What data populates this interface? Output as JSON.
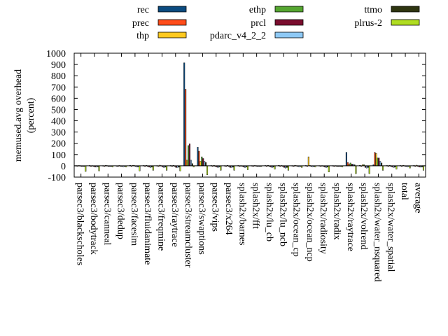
{
  "chart_data": {
    "type": "bar",
    "ylabel_line1": "memused.avg overhead",
    "ylabel_line2": "(percent)",
    "ylim": [
      -100,
      1000
    ],
    "yticks": [
      -100,
      0,
      100,
      200,
      300,
      400,
      500,
      600,
      700,
      800,
      900,
      1000
    ],
    "legend_placement": "top",
    "categories": [
      "parsec3/blackscholes",
      "parsec3/bodytrack",
      "parsec3/canneal",
      "parsec3/dedup",
      "parsec3/facesim",
      "parsec3/fluidanimate",
      "parsec3/freqmine",
      "parsec3/raytrace",
      "parsec3/streamcluster",
      "parsec3/swaptions",
      "parsec3/vips",
      "parsec3/x264",
      "splash2x/barnes",
      "splash2x/fft",
      "splash2x/lu_cb",
      "splash2x/lu_ncb",
      "splash2x/ocean_cp",
      "splash2x/ocean_ncp",
      "splash2x/radiosity",
      "splash2x/radix",
      "splash2x/raytrace",
      "splash2x/volrend",
      "splash2x/water_nsquared",
      "splash2x/water_spatial",
      "total",
      "average"
    ],
    "series": [
      {
        "name": "rec",
        "color": "#0b4b80",
        "values": [
          2,
          3,
          2,
          1,
          4,
          3,
          2,
          3,
          915,
          165,
          3,
          2,
          3,
          2,
          3,
          4,
          2,
          3,
          2,
          2,
          120,
          5,
          10,
          3,
          3,
          3
        ]
      },
      {
        "name": "prec",
        "color": "#ff4c1a",
        "values": [
          1,
          -5,
          -2,
          -2,
          -5,
          -3,
          -5,
          -5,
          680,
          130,
          -3,
          -2,
          -2,
          -1,
          -5,
          -5,
          -3,
          -3,
          -3,
          -2,
          30,
          -5,
          120,
          -5,
          -2,
          -5
        ]
      },
      {
        "name": "thp",
        "color": "#ffc91f",
        "values": [
          3,
          2,
          4,
          3,
          5,
          4,
          6,
          4,
          50,
          40,
          5,
          4,
          2,
          3,
          4,
          3,
          5,
          80,
          2,
          2,
          15,
          10,
          110,
          4,
          5,
          6
        ]
      },
      {
        "name": "ethp",
        "color": "#55a630",
        "values": [
          2,
          -3,
          2,
          -2,
          3,
          -3,
          2,
          -2,
          180,
          80,
          -3,
          -3,
          -2,
          2,
          -3,
          -3,
          2,
          3,
          -3,
          -2,
          25,
          10,
          70,
          -3,
          2,
          -3
        ]
      },
      {
        "name": "prcl",
        "color": "#7a0d2e",
        "values": [
          -3,
          -10,
          -5,
          -3,
          -5,
          -10,
          -10,
          -15,
          195,
          65,
          -10,
          -15,
          -10,
          -3,
          -10,
          -15,
          -5,
          -5,
          -10,
          -3,
          15,
          -15,
          70,
          -10,
          -5,
          -10
        ]
      },
      {
        "name": "pdarc_v4_2_2",
        "color": "#8ec9f5",
        "values": [
          -5,
          -10,
          -5,
          -8,
          -10,
          -15,
          -15,
          -15,
          50,
          40,
          -15,
          -15,
          -15,
          -5,
          -15,
          -20,
          -8,
          -8,
          -15,
          -5,
          15,
          -20,
          40,
          -15,
          -8,
          -12
        ]
      },
      {
        "name": "ttmo",
        "color": "#2e3510",
        "values": [
          -3,
          -8,
          -3,
          -5,
          -8,
          -12,
          -12,
          -12,
          20,
          30,
          -10,
          -12,
          -10,
          -3,
          -12,
          -15,
          -5,
          -5,
          -12,
          -3,
          10,
          -15,
          25,
          -10,
          -5,
          -10
        ]
      },
      {
        "name": "plrus-2",
        "color": "#b0dd21",
        "values": [
          -50,
          -45,
          -10,
          -10,
          -45,
          -40,
          -40,
          -45,
          -10,
          -80,
          -40,
          -40,
          -35,
          -5,
          -30,
          -40,
          -15,
          -10,
          -55,
          -10,
          -70,
          -70,
          -40,
          -30,
          -20,
          -40
        ]
      }
    ]
  }
}
